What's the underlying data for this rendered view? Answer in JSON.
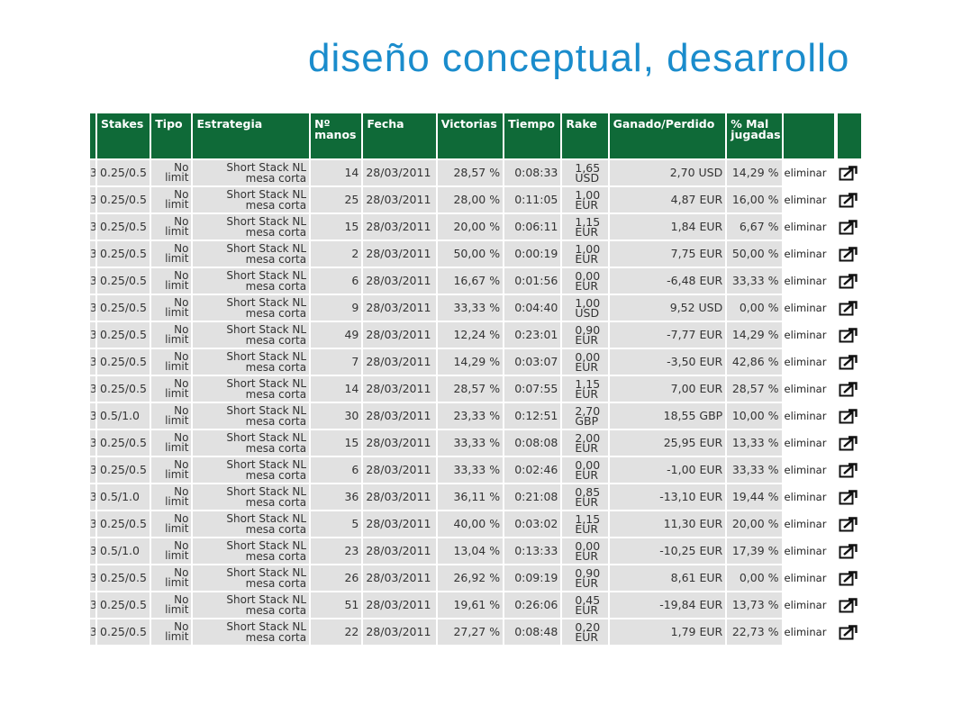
{
  "slide": {
    "title": "diseño conceptual, desarrollo"
  },
  "table": {
    "headers": {
      "stakes": "Stakes",
      "tipo": "Tipo",
      "estrategia": "Estrategia",
      "manos_1": "Nº",
      "manos_2": "manos",
      "fecha": "Fecha",
      "victorias": "Victorias",
      "tiempo": "Tiempo",
      "rake": "Rake",
      "ganado": "Ganado/Perdido",
      "mal_1": "% Mal",
      "mal_2": "jugadas"
    },
    "stub_text": "3",
    "rows": [
      {
        "stakes": "0.25/0.5",
        "tipo_1": "No",
        "tipo_2": "limit",
        "estrategia_1": "Short Stack NL",
        "estrategia_2": "mesa corta",
        "manos": "14",
        "fecha": "28/03/2011",
        "victorias": "28,57 %",
        "tiempo": "0:08:33",
        "rake_1": "1,65",
        "rake_2": "USD",
        "ganado": "2,70 USD",
        "mal": "14,29 %",
        "accion": "eliminar"
      },
      {
        "stakes": "0.25/0.5",
        "tipo_1": "No",
        "tipo_2": "limit",
        "estrategia_1": "Short Stack NL",
        "estrategia_2": "mesa corta",
        "manos": "25",
        "fecha": "28/03/2011",
        "victorias": "28,00 %",
        "tiempo": "0:11:05",
        "rake_1": "1,00",
        "rake_2": "EUR",
        "ganado": "4,87 EUR",
        "mal": "16,00 %",
        "accion": "eliminar"
      },
      {
        "stakes": "0.25/0.5",
        "tipo_1": "No",
        "tipo_2": "limit",
        "estrategia_1": "Short Stack NL",
        "estrategia_2": "mesa corta",
        "manos": "15",
        "fecha": "28/03/2011",
        "victorias": "20,00 %",
        "tiempo": "0:06:11",
        "rake_1": "1,15",
        "rake_2": "EUR",
        "ganado": "1,84 EUR",
        "mal": "6,67 %",
        "accion": "eliminar"
      },
      {
        "stakes": "0.25/0.5",
        "tipo_1": "No",
        "tipo_2": "limit",
        "estrategia_1": "Short Stack NL",
        "estrategia_2": "mesa corta",
        "manos": "2",
        "fecha": "28/03/2011",
        "victorias": "50,00 %",
        "tiempo": "0:00:19",
        "rake_1": "1,00",
        "rake_2": "EUR",
        "ganado": "7,75 EUR",
        "mal": "50,00 %",
        "accion": "eliminar"
      },
      {
        "stakes": "0.25/0.5",
        "tipo_1": "No",
        "tipo_2": "limit",
        "estrategia_1": "Short Stack NL",
        "estrategia_2": "mesa corta",
        "manos": "6",
        "fecha": "28/03/2011",
        "victorias": "16,67 %",
        "tiempo": "0:01:56",
        "rake_1": "0,00",
        "rake_2": "EUR",
        "ganado": "-6,48 EUR",
        "mal": "33,33 %",
        "accion": "eliminar"
      },
      {
        "stakes": "0.25/0.5",
        "tipo_1": "No",
        "tipo_2": "limit",
        "estrategia_1": "Short Stack NL",
        "estrategia_2": "mesa corta",
        "manos": "9",
        "fecha": "28/03/2011",
        "victorias": "33,33 %",
        "tiempo": "0:04:40",
        "rake_1": "1,00",
        "rake_2": "USD",
        "ganado": "9,52 USD",
        "mal": "0,00 %",
        "accion": "eliminar"
      },
      {
        "stakes": "0.25/0.5",
        "tipo_1": "No",
        "tipo_2": "limit",
        "estrategia_1": "Short Stack NL",
        "estrategia_2": "mesa corta",
        "manos": "49",
        "fecha": "28/03/2011",
        "victorias": "12,24 %",
        "tiempo": "0:23:01",
        "rake_1": "0,90",
        "rake_2": "EUR",
        "ganado": "-7,77 EUR",
        "mal": "14,29 %",
        "accion": "eliminar"
      },
      {
        "stakes": "0.25/0.5",
        "tipo_1": "No",
        "tipo_2": "limit",
        "estrategia_1": "Short Stack NL",
        "estrategia_2": "mesa corta",
        "manos": "7",
        "fecha": "28/03/2011",
        "victorias": "14,29 %",
        "tiempo": "0:03:07",
        "rake_1": "0,00",
        "rake_2": "EUR",
        "ganado": "-3,50 EUR",
        "mal": "42,86 %",
        "accion": "eliminar"
      },
      {
        "stakes": "0.25/0.5",
        "tipo_1": "No",
        "tipo_2": "limit",
        "estrategia_1": "Short Stack NL",
        "estrategia_2": "mesa corta",
        "manos": "14",
        "fecha": "28/03/2011",
        "victorias": "28,57 %",
        "tiempo": "0:07:55",
        "rake_1": "1,15",
        "rake_2": "EUR",
        "ganado": "7,00 EUR",
        "mal": "28,57 %",
        "accion": "eliminar"
      },
      {
        "stakes": "0.5/1.0",
        "tipo_1": "No",
        "tipo_2": "limit",
        "estrategia_1": "Short Stack NL",
        "estrategia_2": "mesa corta",
        "manos": "30",
        "fecha": "28/03/2011",
        "victorias": "23,33 %",
        "tiempo": "0:12:51",
        "rake_1": "2,70",
        "rake_2": "GBP",
        "ganado": "18,55 GBP",
        "mal": "10,00 %",
        "accion": "eliminar"
      },
      {
        "stakes": "0.25/0.5",
        "tipo_1": "No",
        "tipo_2": "limit",
        "estrategia_1": "Short Stack NL",
        "estrategia_2": "mesa corta",
        "manos": "15",
        "fecha": "28/03/2011",
        "victorias": "33,33 %",
        "tiempo": "0:08:08",
        "rake_1": "2,00",
        "rake_2": "EUR",
        "ganado": "25,95 EUR",
        "mal": "13,33 %",
        "accion": "eliminar"
      },
      {
        "stakes": "0.25/0.5",
        "tipo_1": "No",
        "tipo_2": "limit",
        "estrategia_1": "Short Stack NL",
        "estrategia_2": "mesa corta",
        "manos": "6",
        "fecha": "28/03/2011",
        "victorias": "33,33 %",
        "tiempo": "0:02:46",
        "rake_1": "0,00",
        "rake_2": "EUR",
        "ganado": "-1,00 EUR",
        "mal": "33,33 %",
        "accion": "eliminar"
      },
      {
        "stakes": "0.5/1.0",
        "tipo_1": "No",
        "tipo_2": "limit",
        "estrategia_1": "Short Stack NL",
        "estrategia_2": "mesa corta",
        "manos": "36",
        "fecha": "28/03/2011",
        "victorias": "36,11 %",
        "tiempo": "0:21:08",
        "rake_1": "0,85",
        "rake_2": "EUR",
        "ganado": "-13,10 EUR",
        "mal": "19,44 %",
        "accion": "eliminar"
      },
      {
        "stakes": "0.25/0.5",
        "tipo_1": "No",
        "tipo_2": "limit",
        "estrategia_1": "Short Stack NL",
        "estrategia_2": "mesa corta",
        "manos": "5",
        "fecha": "28/03/2011",
        "victorias": "40,00 %",
        "tiempo": "0:03:02",
        "rake_1": "1,15",
        "rake_2": "EUR",
        "ganado": "11,30 EUR",
        "mal": "20,00 %",
        "accion": "eliminar"
      },
      {
        "stakes": "0.5/1.0",
        "tipo_1": "No",
        "tipo_2": "limit",
        "estrategia_1": "Short Stack NL",
        "estrategia_2": "mesa corta",
        "manos": "23",
        "fecha": "28/03/2011",
        "victorias": "13,04 %",
        "tiempo": "0:13:33",
        "rake_1": "0,00",
        "rake_2": "EUR",
        "ganado": "-10,25 EUR",
        "mal": "17,39 %",
        "accion": "eliminar"
      },
      {
        "stakes": "0.25/0.5",
        "tipo_1": "No",
        "tipo_2": "limit",
        "estrategia_1": "Short Stack NL",
        "estrategia_2": "mesa corta",
        "manos": "26",
        "fecha": "28/03/2011",
        "victorias": "26,92 %",
        "tiempo": "0:09:19",
        "rake_1": "0,90",
        "rake_2": "EUR",
        "ganado": "8,61 EUR",
        "mal": "0,00 %",
        "accion": "eliminar"
      },
      {
        "stakes": "0.25/0.5",
        "tipo_1": "No",
        "tipo_2": "limit",
        "estrategia_1": "Short Stack NL",
        "estrategia_2": "mesa corta",
        "manos": "51",
        "fecha": "28/03/2011",
        "victorias": "19,61 %",
        "tiempo": "0:26:06",
        "rake_1": "0,45",
        "rake_2": "EUR",
        "ganado": "-19,84 EUR",
        "mal": "13,73 %",
        "accion": "eliminar"
      },
      {
        "stakes": "0.25/0.5",
        "tipo_1": "No",
        "tipo_2": "limit",
        "estrategia_1": "Short Stack NL",
        "estrategia_2": "mesa corta",
        "manos": "22",
        "fecha": "28/03/2011",
        "victorias": "27,27 %",
        "tiempo": "0:08:48",
        "rake_1": "0,20",
        "rake_2": "EUR",
        "ganado": "1,79 EUR",
        "mal": "22,73 %",
        "accion": "eliminar"
      }
    ],
    "icons": {
      "edit": "external-edit-icon"
    },
    "colors": {
      "header_bg": "#0f6a38",
      "cell_bg": "#e1e1e1",
      "title": "#1a8ccc"
    }
  }
}
